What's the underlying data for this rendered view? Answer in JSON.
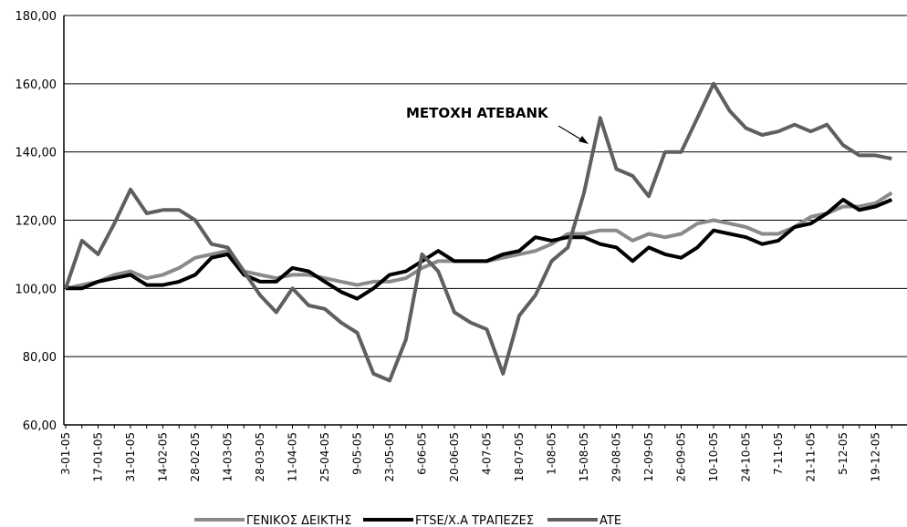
{
  "chart_data": {
    "type": "line",
    "annotation": "ΜΕΤΟΧΗ ATEBANK",
    "categories": [
      "3-01-05",
      null,
      "17-01-05",
      null,
      "31-01-05",
      null,
      "14-02-05",
      null,
      "28-02-05",
      null,
      "14-03-05",
      null,
      "28-03-05",
      null,
      "11-04-05",
      null,
      "25-04-05",
      null,
      "9-05-05",
      null,
      "23-05-05",
      null,
      "6-06-05",
      null,
      "20-06-05",
      null,
      "4-07-05",
      null,
      "18-07-05",
      null,
      "1-08-05",
      null,
      "15-08-05",
      null,
      "29-08-05",
      null,
      "12-09-05",
      null,
      "26-09-05",
      null,
      "10-10-05",
      null,
      "24-10-05",
      null,
      "7-11-05",
      null,
      "21-11-05",
      null,
      "5-12-05",
      null,
      "19-12-05",
      null
    ],
    "series": [
      {
        "name": "ΓΕΝΙΚΟΣ ΔΕΙΚΤΗΣ",
        "color": "#8a8a8a",
        "values": [
          100,
          101,
          102,
          104,
          105,
          103,
          104,
          106,
          109,
          110,
          111,
          105,
          104,
          103,
          104,
          104,
          103,
          102,
          101,
          102,
          102,
          103,
          106,
          108,
          108,
          108,
          108,
          109,
          110,
          111,
          113,
          116,
          116,
          117,
          117,
          114,
          116,
          115,
          116,
          119,
          120,
          119,
          118,
          116,
          116,
          118,
          121,
          122,
          124,
          124,
          125,
          128
        ]
      },
      {
        "name": "FTSE/Χ.Α ΤΡΑΠΕΖΕΣ",
        "color": "#000000",
        "values": [
          100,
          100,
          102,
          103,
          104,
          101,
          101,
          102,
          104,
          109,
          110,
          104,
          102,
          102,
          106,
          105,
          102,
          99,
          97,
          100,
          104,
          105,
          108,
          111,
          108,
          108,
          108,
          110,
          111,
          115,
          114,
          115,
          115,
          113,
          112,
          108,
          112,
          110,
          109,
          112,
          117,
          116,
          115,
          113,
          114,
          118,
          119,
          122,
          126,
          123,
          124,
          126
        ]
      },
      {
        "name": "ATE",
        "color": "#5f5f5f",
        "values": [
          100,
          114,
          110,
          119,
          129,
          122,
          123,
          123,
          120,
          113,
          112,
          105,
          98,
          93,
          100,
          95,
          94,
          90,
          87,
          75,
          73,
          85,
          110,
          105,
          93,
          90,
          88,
          75,
          92,
          98,
          108,
          112,
          128,
          150,
          135,
          133,
          127,
          140,
          140,
          150,
          160,
          152,
          147,
          145,
          146,
          148,
          146,
          148,
          142,
          139,
          139,
          138
        ]
      }
    ],
    "ylim": [
      60,
      180
    ],
    "yticks": [
      {
        "value": 60,
        "label": "60,00"
      },
      {
        "value": 80,
        "label": "80,00"
      },
      {
        "value": 100,
        "label": "100,00"
      },
      {
        "value": 120,
        "label": "120,00"
      },
      {
        "value": 140,
        "label": "140,00"
      },
      {
        "value": 160,
        "label": "160,00"
      },
      {
        "value": 180,
        "label": "180,00"
      }
    ],
    "grid": true
  }
}
